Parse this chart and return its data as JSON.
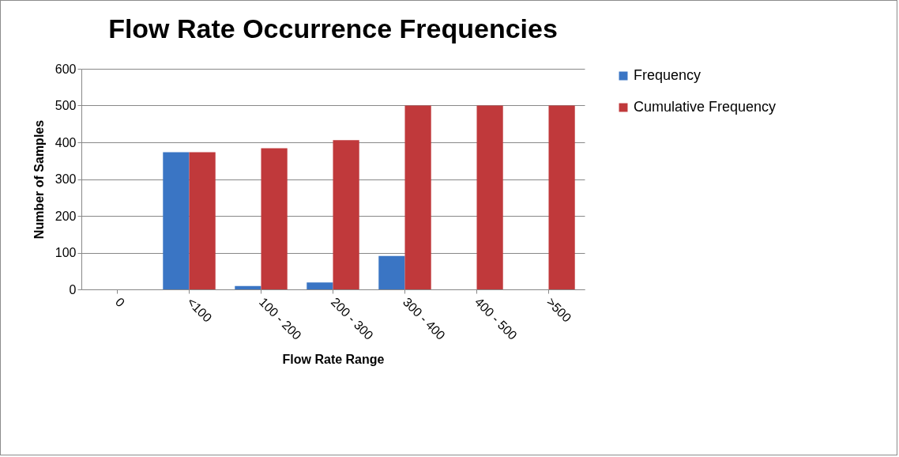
{
  "chart_data": {
    "type": "bar",
    "title": "Flow Rate Occurrence Frequencies",
    "xlabel": "Flow Rate Range",
    "ylabel": "Number of Samples",
    "categories": [
      "0",
      "<100",
      "100 - 200",
      "200 - 300",
      "300 - 400",
      "400 - 500",
      ">500"
    ],
    "series": [
      {
        "name": "Frequency",
        "color": "#3a75c4",
        "values": [
          null,
          373,
          9,
          19,
          91,
          null,
          null
        ]
      },
      {
        "name": "Cumulative Frequency",
        "color": "#c0393b",
        "values": [
          null,
          373,
          384,
          406,
          500,
          500,
          500
        ]
      }
    ],
    "ylim": [
      0,
      600
    ],
    "yticks": [
      0,
      100,
      200,
      300,
      400,
      500,
      600
    ],
    "grid": "y",
    "legend": "right"
  }
}
